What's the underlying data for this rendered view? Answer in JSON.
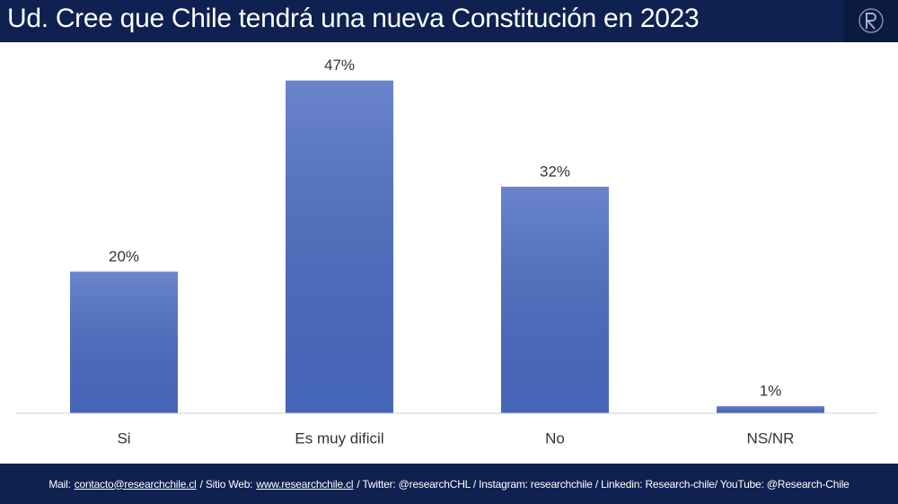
{
  "header": {
    "title": "Ud. Cree que Chile tendrá una nueva Constitución en 2023"
  },
  "chart_data": {
    "type": "bar",
    "categories": [
      "Si",
      "Es muy dificil",
      "No",
      "NS/NR"
    ],
    "values": [
      20,
      47,
      32,
      1
    ],
    "value_labels": [
      "20%",
      "47%",
      "32%",
      "1%"
    ],
    "color": "#4a6bc2",
    "ylim": [
      0,
      50
    ],
    "grid": false
  },
  "footer": {
    "mail_label": "Mail:",
    "mail": "contacto@researchchile.cl",
    "web_label": "/ Sitio Web:",
    "web": "www.researchchile.cl",
    "rest": "/ Twitter: @researchCHL / Instagram: researchchile / Linkedin: Research-chile/ YouTube: @Research-Chile"
  }
}
